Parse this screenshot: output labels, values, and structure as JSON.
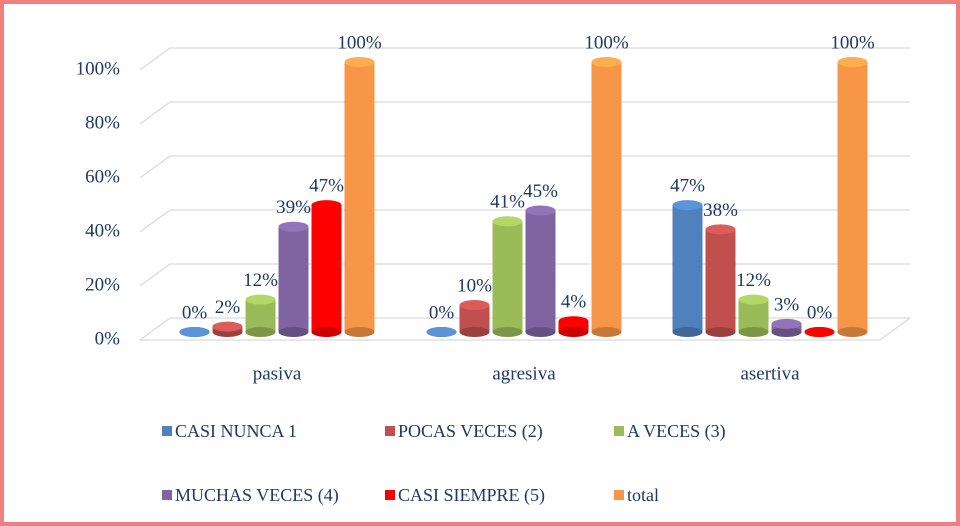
{
  "chart_data": {
    "type": "bar3d",
    "categories": [
      "pasiva",
      "agresiva",
      "asertiva"
    ],
    "series": [
      {
        "name": "CASI NUNCA 1",
        "color": "#4f81bd",
        "values": [
          0,
          0,
          47
        ],
        "value_labels": [
          "0%",
          "0%",
          "47%"
        ]
      },
      {
        "name": "POCAS VECES (2)",
        "color": "#c0504d",
        "values": [
          2,
          10,
          38
        ],
        "value_labels": [
          "2%",
          "10%",
          "38%"
        ]
      },
      {
        "name": "A VECES (3)",
        "color": "#9bbb59",
        "values": [
          12,
          41,
          12
        ],
        "value_labels": [
          "12%",
          "41%",
          "12%"
        ]
      },
      {
        "name": "MUCHAS VECES (4)",
        "color": "#8064a2",
        "values": [
          39,
          45,
          3
        ],
        "value_labels": [
          "39%",
          "45%",
          "3%"
        ]
      },
      {
        "name": "CASI SIEMPRE (5)",
        "color": "#ff0000",
        "values": [
          47,
          4,
          0
        ],
        "value_labels": [
          "47%",
          "4%",
          "0%"
        ]
      },
      {
        "name": "total",
        "color": "#f79646",
        "values": [
          100,
          100,
          100
        ],
        "value_labels": [
          "100%",
          "100%",
          "100%"
        ]
      }
    ],
    "ylim": [
      0,
      100
    ],
    "yticks": [
      {
        "value": 0,
        "label": "0%"
      },
      {
        "value": 20,
        "label": "20%"
      },
      {
        "value": 40,
        "label": "40%"
      },
      {
        "value": 60,
        "label": "60%"
      },
      {
        "value": 80,
        "label": "80%"
      },
      {
        "value": 100,
        "label": "100%"
      }
    ],
    "grid": true,
    "legend": "bottom"
  }
}
